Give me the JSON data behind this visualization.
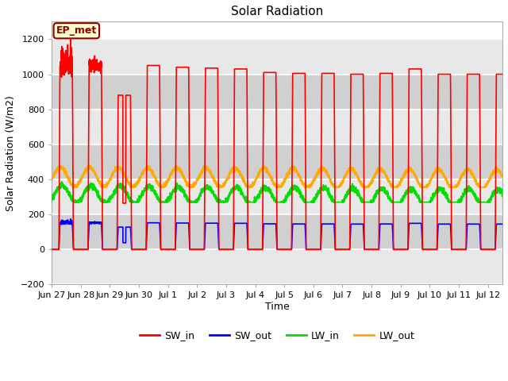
{
  "title": "Solar Radiation",
  "ylabel": "Solar Radiation (W/m2)",
  "xlabel": "Time",
  "ylim": [
    -200,
    1300
  ],
  "yticks": [
    -200,
    0,
    200,
    400,
    600,
    800,
    1000,
    1200
  ],
  "label_box": "EP_met",
  "bg_color": "#ffffff",
  "plot_bg_color": "#ffffff",
  "band_colors": [
    "#e8e8e8",
    "#d0d0d0"
  ],
  "grid_color": "#ffffff",
  "line_colors": {
    "SW_in": "#ff0000",
    "SW_out": "#0000ff",
    "LW_in": "#00dd00",
    "LW_out": "#ffaa00"
  },
  "line_width": 1.2,
  "start_day": 0.0,
  "end_day": 15.5,
  "n_points": 5000,
  "days_labels": [
    "Jun 27",
    "Jun 28",
    "Jun 29",
    "Jun 30",
    "Jul 1",
    "Jul 2",
    "Jul 3",
    "Jul 4",
    "Jul 5",
    "Jul 6",
    "Jul 7",
    "Jul 8",
    "Jul 9",
    "Jul 10",
    "Jul 11",
    "Jul 12"
  ],
  "days_ticks": [
    0.0,
    1.0,
    2.0,
    3.0,
    4.0,
    5.0,
    6.0,
    7.0,
    8.0,
    9.0,
    10.0,
    11.0,
    12.0,
    13.0,
    14.0,
    15.0
  ],
  "legend_labels": [
    "SW_in",
    "SW_out",
    "LW_in",
    "LW_out"
  ]
}
